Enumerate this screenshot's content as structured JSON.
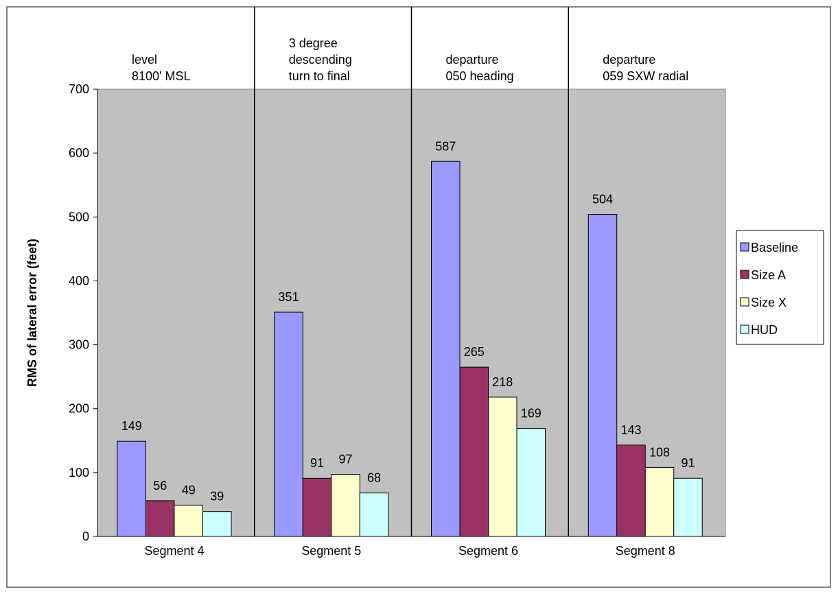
{
  "chart_data": {
    "type": "bar",
    "title": "",
    "xlabel": "",
    "ylabel": "RMS of lateral error (feet)",
    "ylim": [
      0,
      700
    ],
    "yticks": [
      0,
      100,
      200,
      300,
      400,
      500,
      600,
      700
    ],
    "grid": false,
    "legend_position": "right",
    "categories": [
      "Segment 4",
      "Segment 5",
      "Segment 6",
      "Segment 8"
    ],
    "segment_notes": [
      [
        "level",
        "8100' MSL"
      ],
      [
        "3 degree",
        "descending",
        "turn to final"
      ],
      [
        "departure",
        "050 heading"
      ],
      [
        "departure",
        "059 SXW radial"
      ]
    ],
    "series": [
      {
        "name": "Baseline",
        "color": "#9999ff",
        "values": [
          149,
          351,
          587,
          504
        ]
      },
      {
        "name": "Size A",
        "color": "#993366",
        "values": [
          56,
          91,
          265,
          143
        ]
      },
      {
        "name": "Size X",
        "color": "#ffffcc",
        "values": [
          49,
          97,
          218,
          108
        ]
      },
      {
        "name": "HUD",
        "color": "#ccffff",
        "values": [
          39,
          68,
          169,
          91
        ]
      }
    ],
    "plot_background": "#c0c0c0"
  }
}
